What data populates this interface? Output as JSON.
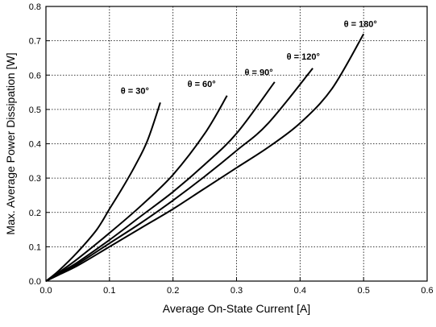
{
  "chart_data": {
    "type": "line",
    "title": "",
    "xlabel": "Average On-State Current [A]",
    "ylabel": "Max. Average Power Dissipation [W]",
    "xlim": [
      0.0,
      0.6
    ],
    "ylim": [
      0.0,
      0.8
    ],
    "xticks": [
      "0.0",
      "0.1",
      "0.2",
      "0.3",
      "0.4",
      "0.5",
      "0.6"
    ],
    "yticks": [
      "0.0",
      "0.1",
      "0.2",
      "0.3",
      "0.4",
      "0.5",
      "0.6",
      "0.7",
      "0.8"
    ],
    "grid": true,
    "legend": "none",
    "series": [
      {
        "name": "θ = 30°",
        "x": [
          0,
          0.02,
          0.05,
          0.08,
          0.1,
          0.12,
          0.14,
          0.16,
          0.18
        ],
        "y": [
          0,
          0.03,
          0.085,
          0.15,
          0.21,
          0.27,
          0.335,
          0.41,
          0.52
        ]
      },
      {
        "name": "θ = 60°",
        "x": [
          0,
          0.02,
          0.05,
          0.1,
          0.15,
          0.2,
          0.25,
          0.285
        ],
        "y": [
          0,
          0.025,
          0.065,
          0.14,
          0.22,
          0.31,
          0.43,
          0.54
        ]
      },
      {
        "name": "θ = 90°",
        "x": [
          0,
          0.02,
          0.05,
          0.1,
          0.15,
          0.2,
          0.25,
          0.3,
          0.36
        ],
        "y": [
          0,
          0.022,
          0.055,
          0.12,
          0.19,
          0.26,
          0.34,
          0.43,
          0.58
        ]
      },
      {
        "name": "θ = 120°",
        "x": [
          0,
          0.02,
          0.05,
          0.1,
          0.15,
          0.2,
          0.25,
          0.3,
          0.35,
          0.42
        ],
        "y": [
          0,
          0.02,
          0.05,
          0.11,
          0.17,
          0.235,
          0.305,
          0.38,
          0.46,
          0.62
        ]
      },
      {
        "name": "θ = 180°",
        "x": [
          0,
          0.02,
          0.05,
          0.1,
          0.15,
          0.2,
          0.25,
          0.3,
          0.35,
          0.4,
          0.45,
          0.5
        ],
        "y": [
          0,
          0.018,
          0.045,
          0.1,
          0.155,
          0.21,
          0.27,
          0.33,
          0.39,
          0.46,
          0.56,
          0.72
        ]
      }
    ],
    "annotations": [
      {
        "text": "θ = 30°",
        "x": 0.14,
        "y": 0.545
      },
      {
        "text": "θ = 60°",
        "x": 0.245,
        "y": 0.565
      },
      {
        "text": "θ = 90°",
        "x": 0.335,
        "y": 0.6
      },
      {
        "text": "θ = 120°",
        "x": 0.405,
        "y": 0.645
      },
      {
        "text": "θ = 180°",
        "x": 0.495,
        "y": 0.74
      }
    ]
  }
}
